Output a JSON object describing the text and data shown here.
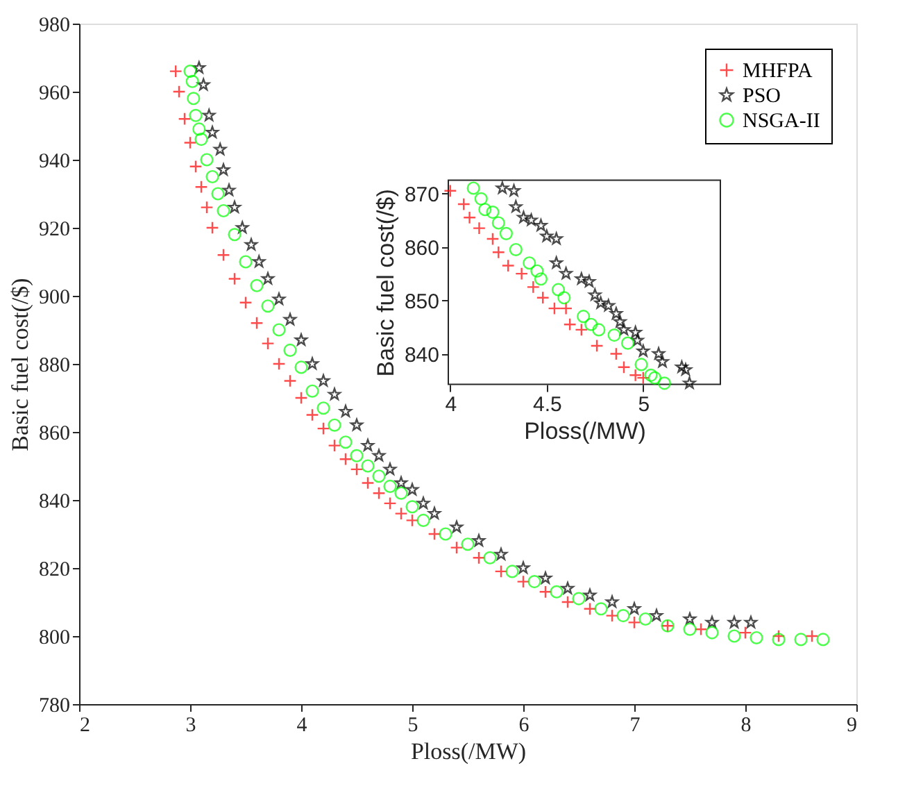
{
  "chart_data": [
    {
      "type": "scatter",
      "xlabel": "Ploss(/MW)",
      "ylabel": "Basic fuel cost(/$)",
      "xlim": [
        2,
        9
      ],
      "ylim": [
        780,
        980
      ],
      "xticks": [
        2,
        3,
        4,
        5,
        6,
        7,
        8,
        9
      ],
      "yticks": [
        780,
        800,
        820,
        840,
        860,
        880,
        900,
        920,
        940,
        960,
        980
      ],
      "grid": false,
      "legend": "top right",
      "series": [
        {
          "name": "MHFPA",
          "color": "#ff0000",
          "marker": "cross",
          "x": [
            2.87,
            2.9,
            2.95,
            3.0,
            3.05,
            3.1,
            3.15,
            3.2,
            3.3,
            3.4,
            3.5,
            3.6,
            3.7,
            3.8,
            3.9,
            4.0,
            4.1,
            4.2,
            4.3,
            4.4,
            4.5,
            4.6,
            4.7,
            4.8,
            4.9,
            5.0,
            5.2,
            5.4,
            5.6,
            5.8,
            6.0,
            6.2,
            6.4,
            6.6,
            6.8,
            7.0,
            7.3,
            7.6,
            8.0,
            8.3,
            8.6
          ],
          "values": [
            966,
            960,
            952,
            945,
            938,
            932,
            926,
            920,
            912,
            905,
            898,
            892,
            886,
            880,
            875,
            870,
            865,
            861,
            856,
            852,
            849,
            845,
            842,
            839,
            836,
            834,
            830,
            826,
            823,
            819,
            816,
            813,
            810,
            808,
            806,
            804,
            803,
            802,
            801,
            800,
            800
          ]
        },
        {
          "name": "PSO",
          "color": "#000000",
          "marker": "star",
          "x": [
            3.08,
            3.12,
            3.17,
            3.2,
            3.27,
            3.3,
            3.35,
            3.4,
            3.47,
            3.55,
            3.62,
            3.7,
            3.8,
            3.9,
            4.0,
            4.1,
            4.2,
            4.3,
            4.4,
            4.5,
            4.6,
            4.7,
            4.8,
            4.9,
            5.0,
            5.1,
            5.2,
            5.4,
            5.6,
            5.8,
            6.0,
            6.2,
            6.4,
            6.6,
            6.8,
            7.0,
            7.2,
            7.5,
            7.7,
            7.9,
            8.05
          ],
          "values": [
            967,
            962,
            953,
            948,
            943,
            937,
            931,
            926,
            920,
            915,
            910,
            905,
            899,
            893,
            887,
            880,
            875,
            871,
            866,
            862,
            856,
            853,
            849,
            845,
            843,
            839,
            836,
            832,
            828,
            824,
            820,
            817,
            814,
            812,
            810,
            808,
            806,
            805,
            804,
            804,
            804
          ]
        },
        {
          "name": "NSGA-II",
          "color": "#00ff00",
          "marker": "circle",
          "x": [
            3.0,
            3.02,
            3.03,
            3.05,
            3.08,
            3.1,
            3.15,
            3.2,
            3.25,
            3.3,
            3.4,
            3.5,
            3.6,
            3.7,
            3.8,
            3.9,
            4.0,
            4.1,
            4.2,
            4.3,
            4.4,
            4.5,
            4.6,
            4.7,
            4.8,
            4.9,
            5.0,
            5.1,
            5.3,
            5.5,
            5.7,
            5.9,
            6.1,
            6.3,
            6.5,
            6.7,
            6.9,
            7.1,
            7.3,
            7.5,
            7.7,
            7.9,
            8.1,
            8.3,
            8.5,
            8.7
          ],
          "values": [
            966,
            963,
            958,
            953,
            949,
            946,
            940,
            935,
            930,
            925,
            918,
            910,
            903,
            897,
            890,
            884,
            879,
            872,
            867,
            862,
            857,
            853,
            850,
            847,
            844,
            842,
            838,
            834,
            830,
            827,
            823,
            819,
            816,
            813,
            811,
            808,
            806,
            805,
            803,
            802,
            801,
            800,
            799.5,
            799,
            799,
            799
          ]
        }
      ]
    },
    {
      "type": "scatter",
      "xlabel": "Ploss(/MW)",
      "ylabel": "Basic fuel cost(/$)",
      "xlim": [
        3.99,
        5.4
      ],
      "ylim": [
        834.3,
        872.5
      ],
      "xticks": [
        4,
        4.5,
        5
      ],
      "yticks": [
        840,
        850,
        860,
        870
      ],
      "grid": false,
      "series": [
        {
          "color": "#ff0000",
          "marker": "cross",
          "x": [
            4.0,
            4.07,
            4.1,
            4.15,
            4.22,
            4.25,
            4.3,
            4.37,
            4.43,
            4.48,
            4.54,
            4.6,
            4.62,
            4.68,
            4.76,
            4.86,
            4.9,
            4.96,
            5.0
          ],
          "values": [
            870.5,
            868,
            865.5,
            863.5,
            861.5,
            859,
            856.5,
            855,
            852.5,
            850.5,
            848.5,
            848.5,
            845.5,
            844.5,
            841.5,
            840,
            837.5,
            836,
            835.5
          ]
        },
        {
          "color": "#000000",
          "marker": "star",
          "x": [
            4.27,
            4.33,
            4.34,
            4.38,
            4.42,
            4.47,
            4.5,
            4.55,
            4.55,
            4.6,
            4.68,
            4.72,
            4.75,
            4.78,
            4.82,
            4.86,
            4.88,
            4.9,
            4.96,
            4.97,
            5.0,
            5.08,
            5.1,
            5.2,
            5.22,
            5.24
          ],
          "values": [
            871,
            870.5,
            867.5,
            865.5,
            865,
            864,
            862,
            861.5,
            857,
            855,
            854,
            853.5,
            851,
            849.5,
            849,
            847.5,
            846,
            844.5,
            844,
            842.5,
            840.5,
            840,
            838.5,
            837.5,
            837,
            834.5
          ]
        },
        {
          "color": "#00ff00",
          "marker": "circle",
          "x": [
            4.12,
            4.16,
            4.18,
            4.22,
            4.25,
            4.29,
            4.34,
            4.41,
            4.45,
            4.47,
            4.56,
            4.59,
            4.69,
            4.73,
            4.77,
            4.85,
            4.92,
            4.99,
            5.04,
            5.06,
            5.11
          ],
          "values": [
            871,
            869,
            867,
            866.5,
            864.5,
            862.5,
            859.5,
            857,
            855.5,
            854,
            852,
            850.5,
            847,
            845.5,
            844.5,
            843.5,
            842,
            838,
            836,
            835.5,
            834.5
          ]
        }
      ]
    }
  ]
}
